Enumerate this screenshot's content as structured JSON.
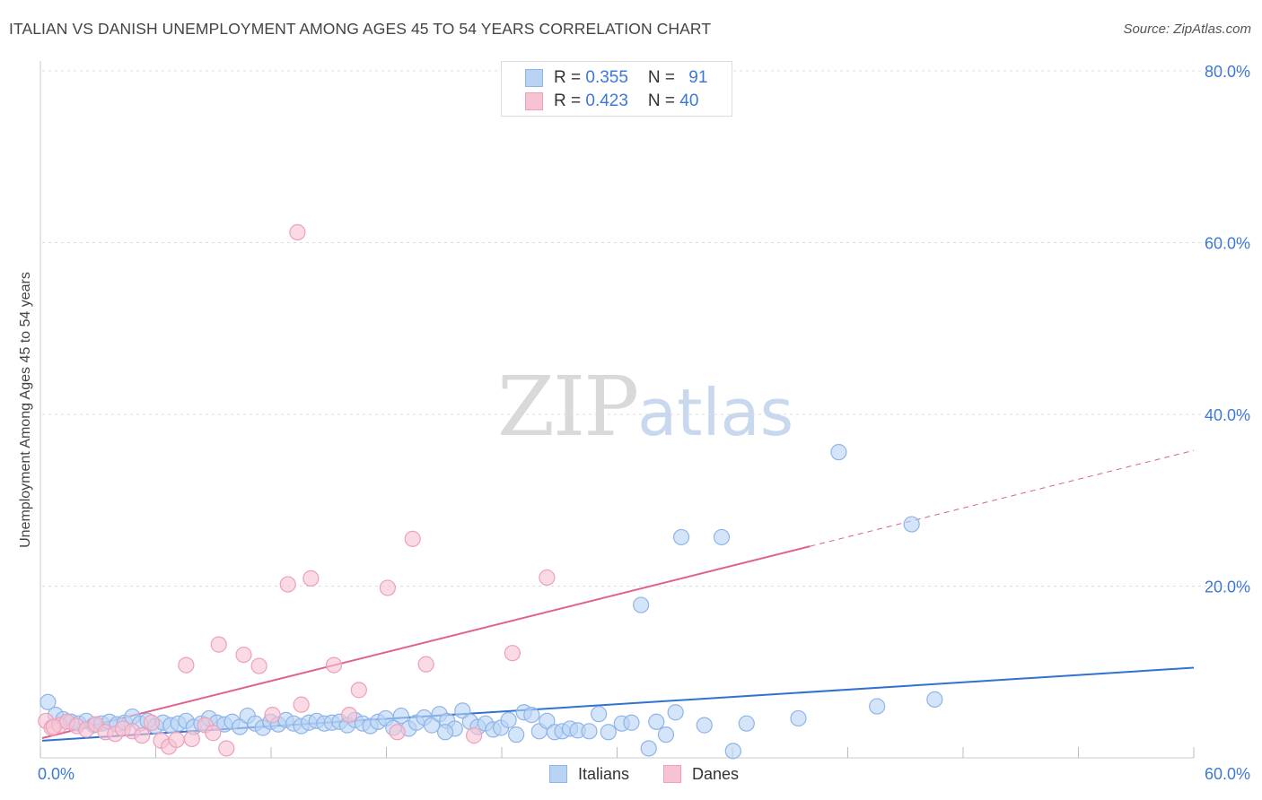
{
  "header": {
    "title": "ITALIAN VS DANISH UNEMPLOYMENT AMONG AGES 45 TO 54 YEARS CORRELATION CHART",
    "source": "Source: ZipAtlas.com"
  },
  "watermark": {
    "zip": "ZIP",
    "atlas": "atlas"
  },
  "legend": {
    "rows": [
      {
        "r_label": "R = ",
        "r_value": "0.355",
        "n_label": "N = ",
        "n_value": "91"
      },
      {
        "r_label": "R = ",
        "r_value": "0.423",
        "n_label": "N = ",
        "n_value": "40"
      }
    ]
  },
  "bottom_legend": {
    "italians": "Italians",
    "danes": "Danes"
  },
  "colors": {
    "italians_fill": "#b9d3f5",
    "italians_stroke": "#8fb4e6",
    "italians_line": "#2f72d0",
    "danes_fill": "#f7c3d3",
    "danes_stroke": "#ee9fb9",
    "danes_line": "#e0608b",
    "tick_text": "#3d78d8",
    "grid": "#dddddd"
  },
  "chart_data": {
    "type": "scatter",
    "title": "ITALIAN VS DANISH UNEMPLOYMENT AMONG AGES 45 TO 54 YEARS CORRELATION CHART",
    "xlabel": "",
    "ylabel": "Unemployment Among Ages 45 to 54 years",
    "xlim": [
      0,
      60
    ],
    "ylim": [
      0,
      80
    ],
    "x_tick_labels": [
      "0.0%",
      "60.0%"
    ],
    "y_ticks": [
      20,
      40,
      60,
      80
    ],
    "y_tick_labels": [
      "20.0%",
      "40.0%",
      "60.0%",
      "80.0%"
    ],
    "grid": true,
    "legend_position": "top-center",
    "series": [
      {
        "name": "Italians",
        "r": 0.355,
        "n": 91,
        "trend": {
          "x": [
            0,
            60
          ],
          "y": [
            2.0,
            10.5
          ],
          "dashed_from": null
        },
        "points": [
          [
            0.3,
            6.5
          ],
          [
            0.7,
            5.0
          ],
          [
            1.1,
            4.5
          ],
          [
            1.5,
            4.2
          ],
          [
            1.9,
            4.0
          ],
          [
            2.3,
            4.3
          ],
          [
            2.7,
            3.8
          ],
          [
            3.1,
            4.0
          ],
          [
            3.5,
            4.2
          ],
          [
            3.9,
            3.9
          ],
          [
            4.3,
            4.1
          ],
          [
            4.7,
            4.8
          ],
          [
            5.1,
            4.0
          ],
          [
            5.5,
            4.3
          ],
          [
            5.9,
            3.7
          ],
          [
            6.3,
            4.1
          ],
          [
            6.7,
            3.8
          ],
          [
            7.1,
            4.0
          ],
          [
            7.5,
            4.3
          ],
          [
            7.9,
            3.6
          ],
          [
            8.3,
            4.0
          ],
          [
            8.7,
            4.6
          ],
          [
            9.1,
            4.1
          ],
          [
            9.5,
            3.9
          ],
          [
            9.9,
            4.2
          ],
          [
            10.3,
            3.6
          ],
          [
            10.7,
            4.9
          ],
          [
            11.1,
            4.0
          ],
          [
            11.5,
            3.5
          ],
          [
            11.9,
            4.2
          ],
          [
            12.3,
            3.9
          ],
          [
            12.7,
            4.4
          ],
          [
            13.1,
            4.0
          ],
          [
            13.5,
            3.7
          ],
          [
            13.9,
            4.1
          ],
          [
            14.3,
            4.3
          ],
          [
            14.7,
            4.0
          ],
          [
            15.1,
            4.1
          ],
          [
            15.5,
            4.2
          ],
          [
            15.9,
            3.8
          ],
          [
            16.3,
            4.4
          ],
          [
            16.7,
            4.0
          ],
          [
            17.1,
            3.7
          ],
          [
            17.5,
            4.2
          ],
          [
            17.9,
            4.6
          ],
          [
            18.3,
            3.5
          ],
          [
            18.7,
            4.9
          ],
          [
            19.1,
            3.4
          ],
          [
            19.5,
            4.1
          ],
          [
            19.9,
            4.7
          ],
          [
            20.3,
            3.8
          ],
          [
            20.7,
            5.1
          ],
          [
            21.1,
            4.3
          ],
          [
            21.5,
            3.4
          ],
          [
            21.9,
            5.5
          ],
          [
            22.3,
            4.2
          ],
          [
            22.7,
            3.6
          ],
          [
            23.1,
            4.0
          ],
          [
            23.5,
            3.3
          ],
          [
            23.9,
            3.5
          ],
          [
            24.3,
            4.4
          ],
          [
            24.7,
            2.7
          ],
          [
            25.1,
            5.3
          ],
          [
            25.5,
            5.0
          ],
          [
            25.9,
            3.1
          ],
          [
            26.3,
            4.3
          ],
          [
            26.7,
            3.0
          ],
          [
            27.1,
            3.1
          ],
          [
            27.5,
            3.4
          ],
          [
            27.9,
            3.2
          ],
          [
            28.5,
            3.1
          ],
          [
            29.0,
            5.1
          ],
          [
            29.5,
            3.0
          ],
          [
            30.2,
            4.0
          ],
          [
            30.7,
            4.1
          ],
          [
            31.2,
            17.8
          ],
          [
            31.6,
            1.1
          ],
          [
            32.0,
            4.2
          ],
          [
            32.5,
            2.7
          ],
          [
            33.0,
            5.3
          ],
          [
            33.3,
            25.7
          ],
          [
            34.5,
            3.8
          ],
          [
            35.4,
            25.7
          ],
          [
            36.0,
            0.8
          ],
          [
            36.7,
            4.0
          ],
          [
            39.4,
            4.6
          ],
          [
            41.5,
            35.6
          ],
          [
            43.5,
            6.0
          ],
          [
            45.3,
            27.2
          ],
          [
            46.5,
            6.8
          ],
          [
            21.0,
            3.0
          ]
        ]
      },
      {
        "name": "Danes",
        "r": 0.423,
        "n": 40,
        "trend": {
          "x": [
            0,
            60
          ],
          "y": [
            2.3,
            35.8
          ],
          "dashed_from": 40
        },
        "points": [
          [
            0.2,
            4.3
          ],
          [
            0.5,
            3.5
          ],
          [
            0.9,
            3.8
          ],
          [
            1.3,
            4.2
          ],
          [
            1.8,
            3.7
          ],
          [
            2.3,
            3.3
          ],
          [
            2.8,
            3.9
          ],
          [
            3.3,
            3.0
          ],
          [
            3.8,
            2.8
          ],
          [
            4.2,
            3.4
          ],
          [
            4.7,
            3.1
          ],
          [
            5.2,
            2.6
          ],
          [
            5.7,
            4.1
          ],
          [
            6.2,
            2.0
          ],
          [
            6.6,
            1.3
          ],
          [
            7.0,
            2.1
          ],
          [
            7.5,
            10.8
          ],
          [
            7.8,
            2.2
          ],
          [
            8.5,
            3.8
          ],
          [
            8.9,
            2.9
          ],
          [
            9.2,
            13.2
          ],
          [
            9.6,
            1.1
          ],
          [
            10.5,
            12.0
          ],
          [
            11.3,
            10.7
          ],
          [
            12.0,
            5.0
          ],
          [
            12.8,
            20.2
          ],
          [
            13.3,
            61.2
          ],
          [
            13.5,
            6.2
          ],
          [
            14.0,
            20.9
          ],
          [
            15.2,
            10.8
          ],
          [
            16.0,
            5.0
          ],
          [
            16.5,
            7.9
          ],
          [
            18.0,
            19.8
          ],
          [
            18.5,
            3.0
          ],
          [
            19.3,
            25.5
          ],
          [
            20.0,
            10.9
          ],
          [
            22.5,
            2.6
          ],
          [
            24.5,
            12.2
          ],
          [
            26.3,
            21.0
          ],
          [
            0.6,
            3.6
          ]
        ]
      }
    ]
  }
}
